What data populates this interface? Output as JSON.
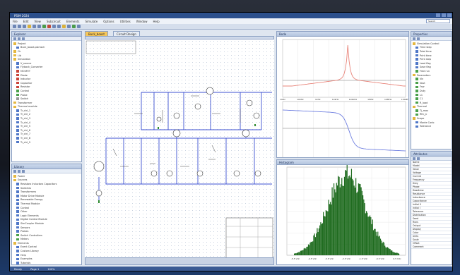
{
  "window": {
    "title": "PSIM 2024"
  },
  "menu": {
    "items": [
      "File",
      "Edit",
      "View",
      "Subcircuit",
      "Elements",
      "Simulate",
      "Options",
      "Utilities",
      "Window",
      "Help"
    ],
    "search_placeholder": "Search"
  },
  "left_top": {
    "title": "Explorer",
    "items": [
      {
        "label": "Project",
        "kind": "fold"
      },
      {
        "label": "Buck_boost.psimsch",
        "kind": "doc"
      },
      {
        "label": "Cir",
        "kind": "fold"
      },
      {
        "label": "Lib",
        "kind": "fold"
      },
      {
        "label": "Simulation",
        "kind": "fold"
      },
      {
        "label": "V_source",
        "kind": "doc"
      },
      {
        "label": "Flyback_Converter",
        "kind": "doc"
      },
      {
        "label": "MOSFET",
        "kind": "red"
      },
      {
        "label": "Diode",
        "kind": "red"
      },
      {
        "label": "Inductor",
        "kind": "red"
      },
      {
        "label": "Capacitor",
        "kind": "red"
      },
      {
        "label": "Resistor",
        "kind": "red"
      },
      {
        "label": "Control",
        "kind": "grn"
      },
      {
        "label": "Probe",
        "kind": "grn"
      },
      {
        "label": "Switch",
        "kind": "gry"
      },
      {
        "label": "Transformer",
        "kind": "fold"
      },
      {
        "label": "Thermal module",
        "kind": "fold"
      },
      {
        "label": "Tr_ctrl_1",
        "kind": "doc"
      },
      {
        "label": "Tr_ctrl_2",
        "kind": "doc"
      },
      {
        "label": "Tr_ctrl_3",
        "kind": "doc"
      },
      {
        "label": "Tr_ctrl_4",
        "kind": "doc"
      },
      {
        "label": "Tr_ctrl_5",
        "kind": "doc"
      },
      {
        "label": "Tr_ctrl_6",
        "kind": "doc"
      },
      {
        "label": "Tr_ctrl_7",
        "kind": "doc"
      },
      {
        "label": "Tr_ctrl_8",
        "kind": "doc"
      },
      {
        "label": "Tr_ctrl_9",
        "kind": "doc"
      }
    ]
  },
  "left_bottom": {
    "title": "Library",
    "items": [
      {
        "label": "Power",
        "kind": "fold"
      },
      {
        "label": "Sources",
        "kind": "fold"
      },
      {
        "label": "Resistors Inductors Capacitors",
        "kind": "doc"
      },
      {
        "label": "Switches",
        "kind": "doc"
      },
      {
        "label": "Transformers",
        "kind": "doc"
      },
      {
        "label": "Motor Drive Module",
        "kind": "doc"
      },
      {
        "label": "Renewable Energy",
        "kind": "doc"
      },
      {
        "label": "Thermal Module",
        "kind": "doc"
      },
      {
        "label": "Control",
        "kind": "doc"
      },
      {
        "label": "Other",
        "kind": "doc"
      },
      {
        "label": "Logic Elements",
        "kind": "doc"
      },
      {
        "label": "Digital Control Module",
        "kind": "doc"
      },
      {
        "label": "SimCoupler Module",
        "kind": "doc"
      },
      {
        "label": "Sensors",
        "kind": "doc"
      },
      {
        "label": "Probes",
        "kind": "doc"
      },
      {
        "label": "Switch Controllers",
        "kind": "grn"
      },
      {
        "label": "Meters",
        "kind": "grn"
      },
      {
        "label": "Elements",
        "kind": "fold"
      },
      {
        "label": "Event Control",
        "kind": "doc"
      },
      {
        "label": "Custom Library",
        "kind": "doc"
      },
      {
        "label": "Help",
        "kind": "doc"
      },
      {
        "label": "Examples",
        "kind": "doc"
      },
      {
        "label": "Tutorials",
        "kind": "doc"
      },
      {
        "label": "Subcircuits",
        "kind": "doc"
      },
      {
        "label": "Templates",
        "kind": "doc"
      },
      {
        "label": "User Elements",
        "kind": "doc"
      },
      {
        "label": "Recent",
        "kind": "doc"
      }
    ]
  },
  "center": {
    "tab_label": "Buck_boost",
    "second_tab": "Circuit Design",
    "status": ""
  },
  "right_top_panel": {
    "title": "Bode",
    "plot_x_ticks": [
      "10Hz",
      "100Hz",
      "1kHz",
      "10kHz",
      "100kHz",
      "1MHz",
      "10MHz",
      "100MHz"
    ]
  },
  "right_mid_panel": {
    "title": "Histogram",
    "x_ticks": [
      "-5.5 Vdc",
      "-4.5 Vdc",
      "-3.5 Vdc",
      "-2.5 Vdc",
      "-1.5 Vdc",
      "-0.5 Vdc",
      "0.5 Vdc"
    ]
  },
  "props_top": {
    "title": "Properties",
    "items": [
      {
        "label": "Simulation Control",
        "kind": "fold"
      },
      {
        "label": "Time step",
        "kind": "doc"
      },
      {
        "label": "Total time",
        "kind": "doc"
      },
      {
        "label": "Print time",
        "kind": "doc"
      },
      {
        "label": "Print step",
        "kind": "doc"
      },
      {
        "label": "Load flag",
        "kind": "doc"
      },
      {
        "label": "Save flag",
        "kind": "doc"
      },
      {
        "label": "Free run",
        "kind": "grn"
      },
      {
        "label": "Parameters",
        "kind": "fold"
      },
      {
        "label": "Vin",
        "kind": "grn"
      },
      {
        "label": "Vout",
        "kind": "grn"
      },
      {
        "label": "Fsw",
        "kind": "grn"
      },
      {
        "label": "Duty",
        "kind": "grn"
      },
      {
        "label": "L1",
        "kind": "grn"
      },
      {
        "label": "C1",
        "kind": "grn"
      },
      {
        "label": "R_load",
        "kind": "grn"
      },
      {
        "label": "Thermal",
        "kind": "fold"
      },
      {
        "label": "Tj_max",
        "kind": "grn"
      },
      {
        "label": "Rth_jc",
        "kind": "grn"
      },
      {
        "label": "Scope",
        "kind": "fold"
      },
      {
        "label": "Monte Carlo",
        "kind": "doc"
      },
      {
        "label": "Tolerance",
        "kind": "doc"
      }
    ]
  },
  "props_bottom": {
    "title": "Attributes",
    "rows": [
      [
        "Name",
        ""
      ],
      [
        "Model",
        ""
      ],
      [
        "Value",
        ""
      ],
      [
        "Voltage",
        ""
      ],
      [
        "Current",
        ""
      ],
      [
        "Frequency",
        ""
      ],
      [
        "Duty",
        ""
      ],
      [
        "Phase",
        ""
      ],
      [
        "Deadtime",
        ""
      ],
      [
        "Resistance",
        ""
      ],
      [
        "Inductance",
        ""
      ],
      [
        "Capacitance",
        ""
      ],
      [
        "Initial V",
        ""
      ],
      [
        "Initial I",
        ""
      ],
      [
        "Tolerance",
        ""
      ],
      [
        "Distribution",
        ""
      ],
      [
        "Seed",
        ""
      ],
      [
        "Runs",
        ""
      ],
      [
        "Output",
        ""
      ],
      [
        "Display",
        ""
      ],
      [
        "Color",
        ""
      ],
      [
        "Units",
        ""
      ],
      [
        "Scale",
        ""
      ],
      [
        "Offset",
        ""
      ],
      [
        "Comment",
        ""
      ]
    ]
  },
  "statusbar": {
    "left": "Ready",
    "mid": "Page 1",
    "right": "100%"
  },
  "colors": {
    "accent": "#2b4f8c",
    "histogram": "#1e6b1e",
    "bode_mag": "#e8847a",
    "bode_phase": "#6f7fe0"
  }
}
